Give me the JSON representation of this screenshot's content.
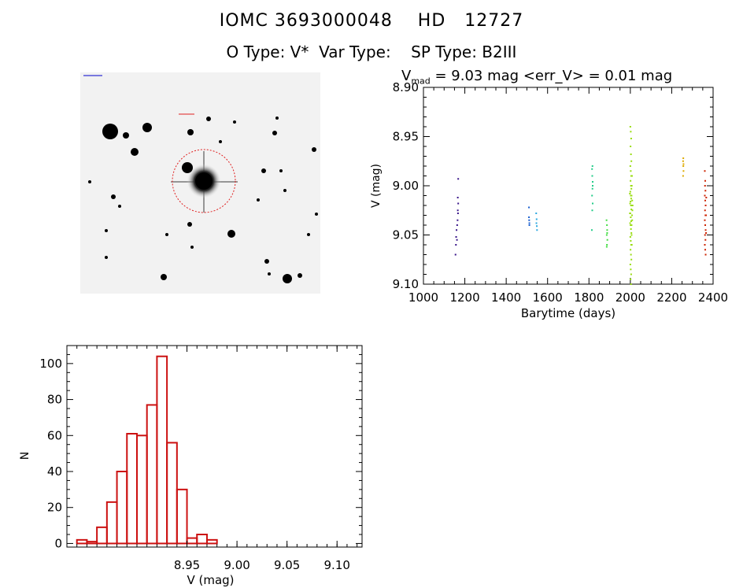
{
  "header": {
    "line1": "IOMC 3693000048    HD   12727",
    "line2": "O Type: V*  Var Type:    SP Type: B2III"
  },
  "lightcurve_title": {
    "prefix": "V",
    "sub": "mad",
    "rest": " = 9.03 mag <err_V> = 0.01 mag"
  },
  "colors": {
    "hist": "#cc1111",
    "circle": "#e02020",
    "axis": "#000000"
  },
  "chart_data": [
    {
      "type": "scatter",
      "title": "",
      "xlabel": "Barytime (days)",
      "ylabel": "V (mag)",
      "xlim": [
        1000,
        2400
      ],
      "ylim": [
        9.1,
        8.9
      ],
      "y_inverted": true,
      "xticks": [
        1000,
        1200,
        1400,
        1600,
        1800,
        2000,
        2200,
        2400
      ],
      "yticks": [
        8.9,
        8.95,
        9.0,
        9.05,
        9.1
      ],
      "grid": false,
      "series": [
        {
          "color": "#3a168a",
          "points": [
            [
              1155,
              9.07
            ],
            [
              1157,
              9.06
            ],
            [
              1158,
              9.052
            ],
            [
              1160,
              9.045
            ],
            [
              1162,
              9.055
            ],
            [
              1163,
              9.04
            ],
            [
              1165,
              9.035
            ],
            [
              1166,
              9.025
            ],
            [
              1168,
              9.018
            ],
            [
              1168,
              8.993
            ],
            [
              1166,
              9.012
            ],
            [
              1167,
              9.028
            ]
          ]
        },
        {
          "color": "#1a5fd0",
          "points": [
            [
              1510,
              9.022
            ],
            [
              1511,
              9.035
            ],
            [
              1512,
              9.038
            ],
            [
              1512,
              9.04
            ],
            [
              1510,
              9.032
            ]
          ]
        },
        {
          "color": "#2aa8e0",
          "points": [
            [
              1545,
              9.028
            ],
            [
              1547,
              9.034
            ],
            [
              1548,
              9.041
            ],
            [
              1549,
              9.045
            ],
            [
              1546,
              9.038
            ]
          ]
        },
        {
          "color": "#22cc88",
          "points": [
            [
              1815,
              8.983
            ],
            [
              1816,
              8.99
            ],
            [
              1818,
              8.996
            ],
            [
              1817,
              9.003
            ],
            [
              1815,
              9.01
            ],
            [
              1818,
              9.018
            ],
            [
              1816,
              9.025
            ],
            [
              1814,
              9.045
            ],
            [
              1817,
              8.98
            ],
            [
              1818,
              9.0
            ]
          ]
        },
        {
          "color": "#44dd44",
          "points": [
            [
              1885,
              9.035
            ],
            [
              1887,
              9.04
            ],
            [
              1888,
              9.045
            ],
            [
              1886,
              9.05
            ],
            [
              1889,
              9.055
            ],
            [
              1887,
              9.06
            ],
            [
              1886,
              9.062
            ],
            [
              1888,
              9.048
            ]
          ]
        },
        {
          "color": "#99dd11",
          "points": [
            [
              2000,
              8.94
            ],
            [
              2002,
              8.945
            ],
            [
              2004,
              8.952
            ],
            [
              2001,
              8.96
            ],
            [
              2003,
              8.968
            ],
            [
              2005,
              8.975
            ],
            [
              2000,
              8.98
            ],
            [
              2002,
              8.985
            ],
            [
              2004,
              8.99
            ],
            [
              2001,
              8.995
            ],
            [
              2003,
              9.0
            ],
            [
              2005,
              9.003
            ],
            [
              2000,
              9.006
            ],
            [
              2002,
              9.01
            ],
            [
              2004,
              9.013
            ],
            [
              2001,
              9.016
            ],
            [
              2003,
              9.02
            ],
            [
              2005,
              9.024
            ],
            [
              2000,
              9.028
            ],
            [
              2002,
              9.032
            ],
            [
              2004,
              9.036
            ],
            [
              2001,
              9.04
            ],
            [
              2003,
              9.044
            ],
            [
              2005,
              9.048
            ],
            [
              2000,
              9.052
            ],
            [
              2002,
              9.056
            ],
            [
              2004,
              9.06
            ],
            [
              2001,
              9.065
            ],
            [
              2003,
              9.07
            ],
            [
              2005,
              9.075
            ],
            [
              2000,
              9.08
            ],
            [
              2002,
              9.085
            ],
            [
              2004,
              9.09
            ],
            [
              2001,
              9.095
            ],
            [
              2003,
              9.1
            ],
            [
              2006,
              9.01
            ],
            [
              2007,
              9.02
            ],
            [
              2008,
              9.03
            ],
            [
              2006,
              9.04
            ],
            [
              2007,
              9.0
            ],
            [
              2008,
              8.99
            ],
            [
              2006,
              9.05
            ],
            [
              2007,
              9.06
            ],
            [
              2009,
              9.015
            ],
            [
              2010,
              9.025
            ],
            [
              2009,
              9.035
            ],
            [
              1999,
              9.018
            ],
            [
              1998,
              9.028
            ],
            [
              1999,
              9.038
            ],
            [
              1998,
              9.008
            ],
            [
              2011,
              9.02
            ]
          ]
        },
        {
          "color": "#ddaa00",
          "points": [
            [
              2255,
              8.975
            ],
            [
              2256,
              8.98
            ],
            [
              2257,
              8.985
            ],
            [
              2256,
              8.972
            ],
            [
              2257,
              8.978
            ],
            [
              2255,
              8.99
            ]
          ]
        },
        {
          "color": "#cc2200",
          "points": [
            [
              2360,
              8.985
            ],
            [
              2362,
              8.995
            ],
            [
              2361,
              9.0
            ],
            [
              2363,
              9.005
            ],
            [
              2360,
              9.01
            ],
            [
              2362,
              9.015
            ],
            [
              2364,
              9.02
            ],
            [
              2361,
              9.025
            ],
            [
              2363,
              9.03
            ],
            [
              2360,
              9.035
            ],
            [
              2362,
              9.04
            ],
            [
              2364,
              9.045
            ],
            [
              2361,
              9.05
            ],
            [
              2363,
              9.055
            ],
            [
              2360,
              9.06
            ],
            [
              2362,
              9.065
            ],
            [
              2364,
              9.07
            ],
            [
              2366,
              9.03
            ],
            [
              2366,
              9.048
            ],
            [
              2367,
              9.012
            ]
          ]
        }
      ]
    },
    {
      "type": "bar",
      "title": "",
      "xlabel": "V (mag)",
      "ylabel": "N",
      "xlim": [
        8.83,
        9.125
      ],
      "ylim": [
        -2,
        110
      ],
      "xticks": [
        8.95,
        9.0,
        9.05,
        9.1
      ],
      "yticks": [
        0,
        20,
        40,
        60,
        80,
        100
      ],
      "grid": false,
      "bin_width": 0.01,
      "bin_starts": [
        8.84,
        8.85,
        8.86,
        8.87,
        8.88,
        8.89,
        8.9,
        8.91,
        8.92,
        8.93,
        8.94,
        8.95,
        8.96,
        8.97,
        8.98,
        8.99
      ],
      "values": [
        2,
        1,
        9,
        23,
        40,
        61,
        60,
        77,
        104,
        56,
        30,
        3,
        5,
        2,
        0,
        0
      ]
    }
  ]
}
